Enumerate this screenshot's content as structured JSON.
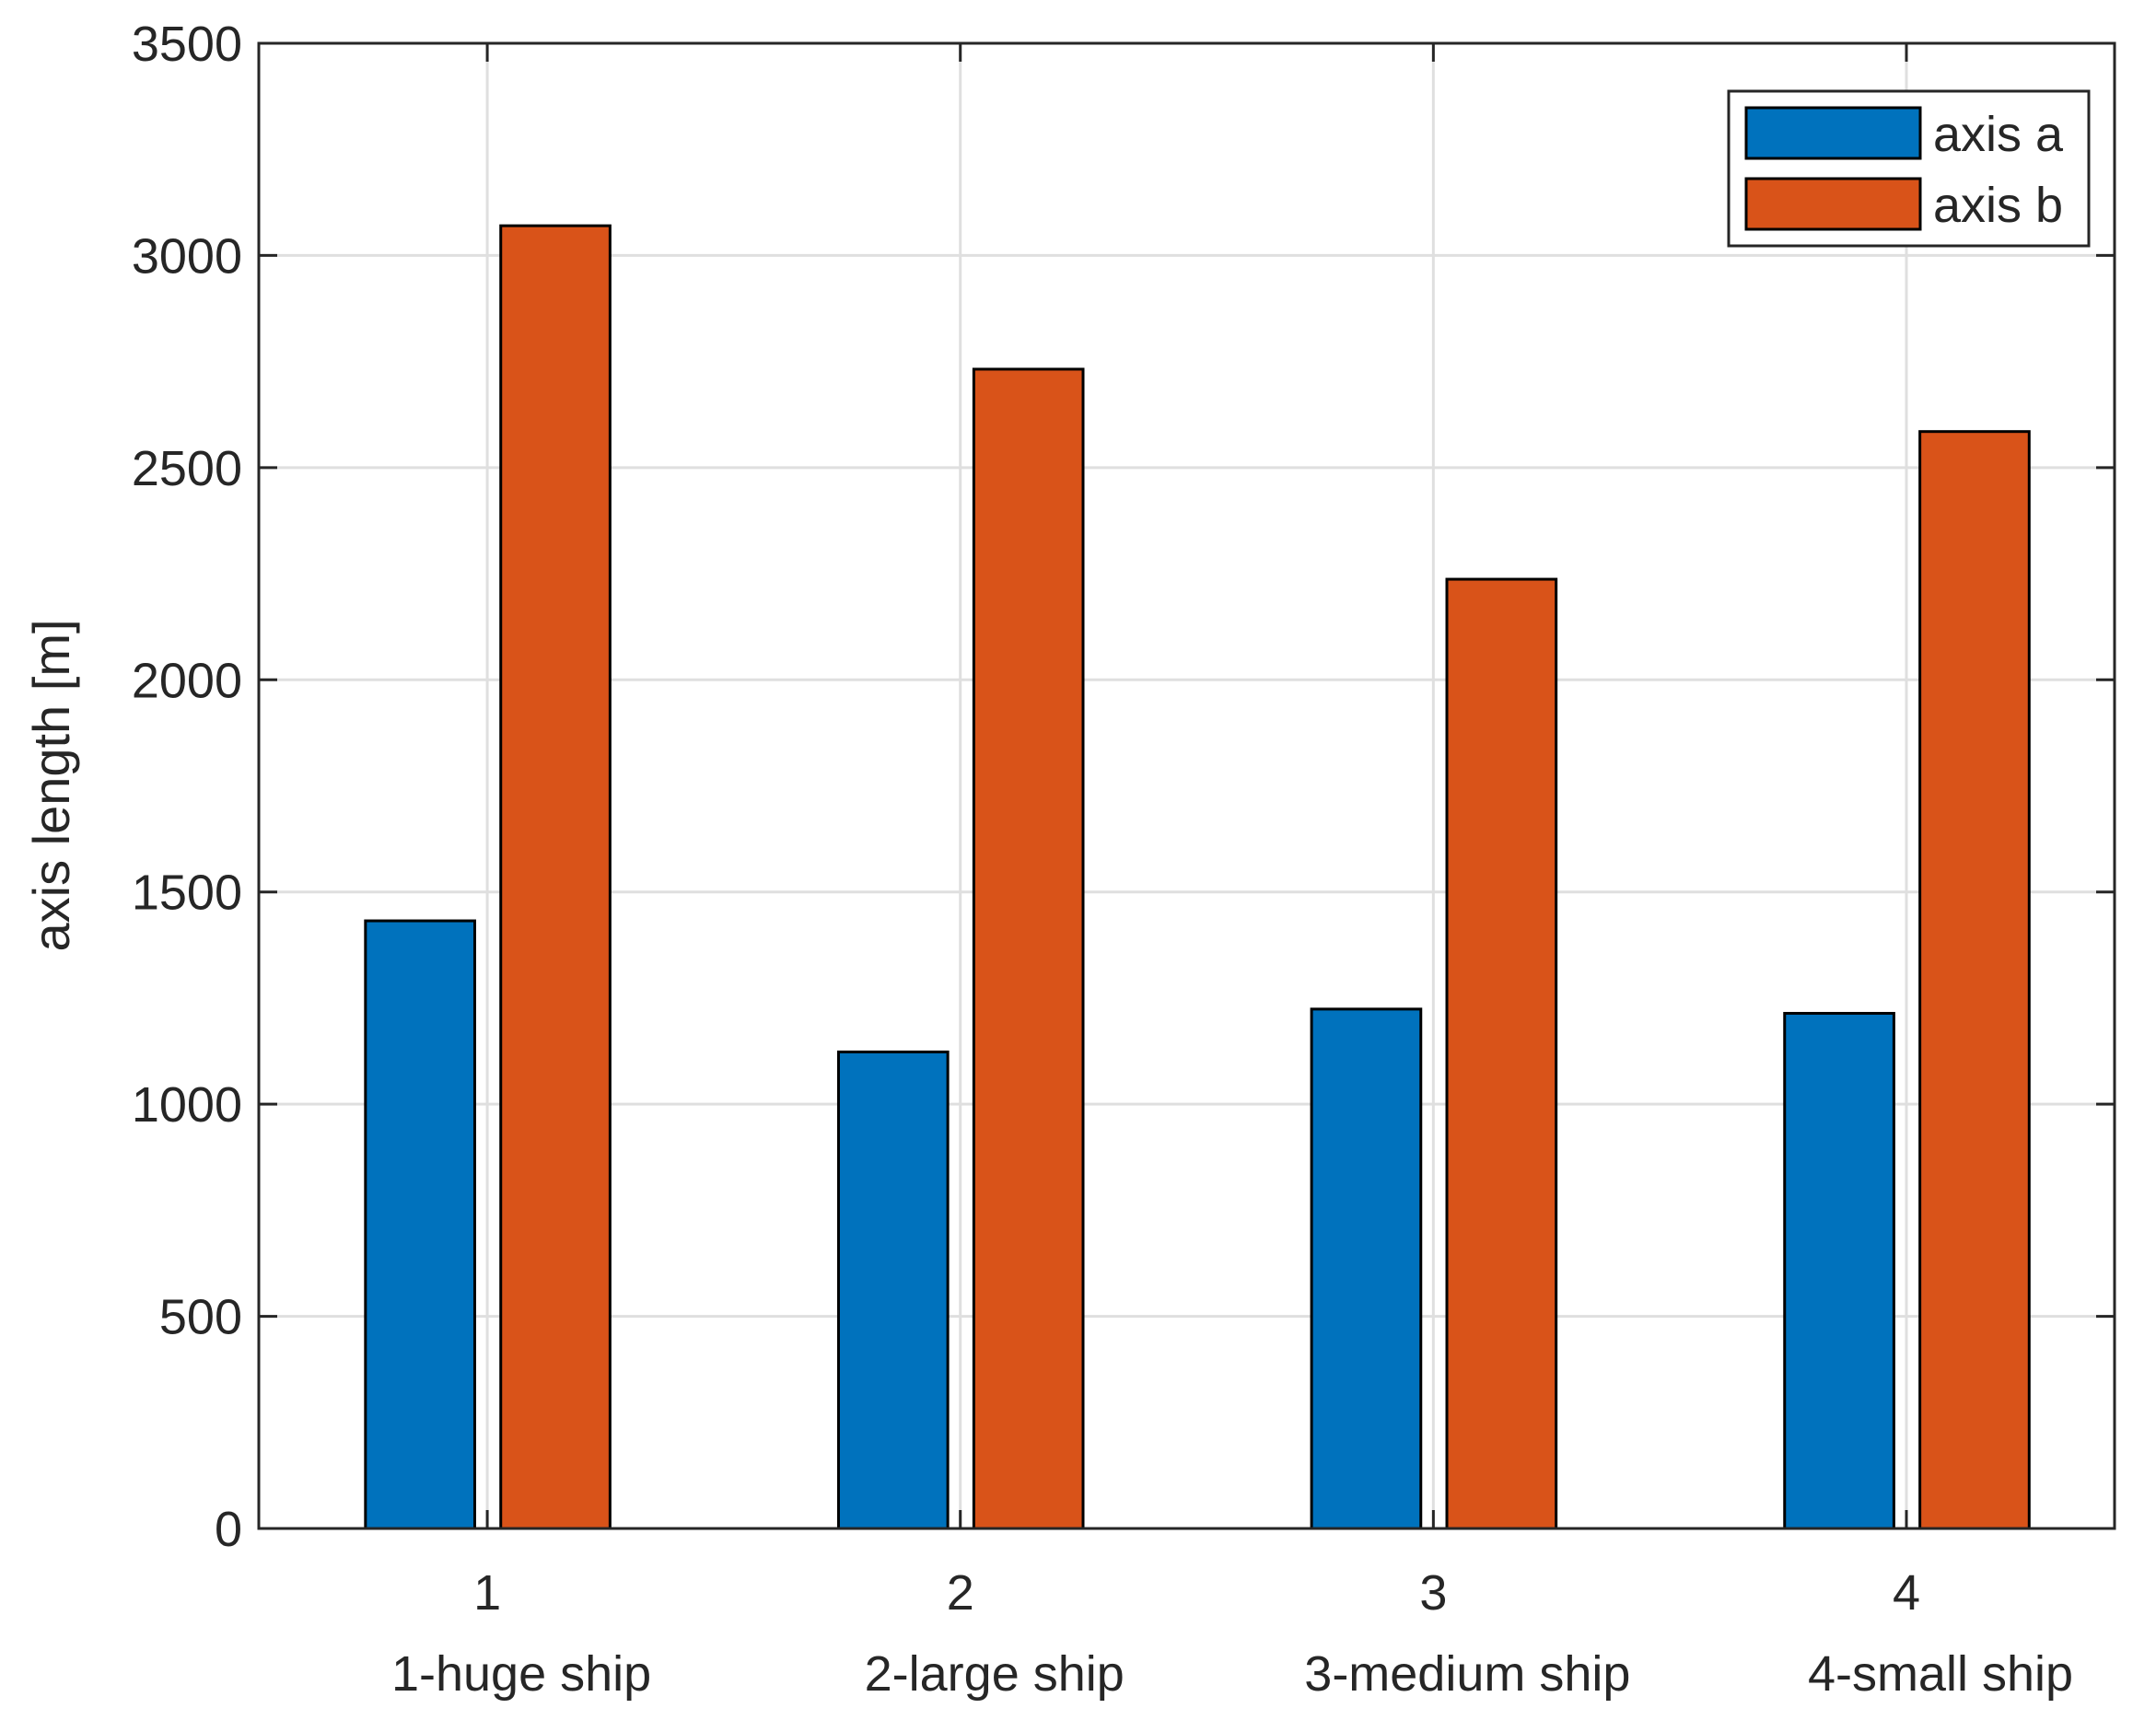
{
  "chart_data": {
    "type": "bar",
    "title": "",
    "xlabel": "",
    "ylabel": "axis length [m]",
    "categories": [
      "1",
      "2",
      "3",
      "4"
    ],
    "category_labels": [
      "1-huge ship",
      "2-large ship",
      "3-medium ship",
      "4-small ship"
    ],
    "series": [
      {
        "name": "axis a",
        "color": "#0072BD",
        "values": [
          1432,
          1123,
          1224,
          1214
        ]
      },
      {
        "name": "axis b",
        "color": "#D95319",
        "values": [
          3070,
          2732,
          2237,
          2585
        ]
      }
    ],
    "ylim": [
      0,
      3500
    ],
    "yticks": [
      0,
      500,
      1000,
      1500,
      2000,
      2500,
      3000,
      3500
    ],
    "grid": true,
    "legend_position": "top-right"
  }
}
